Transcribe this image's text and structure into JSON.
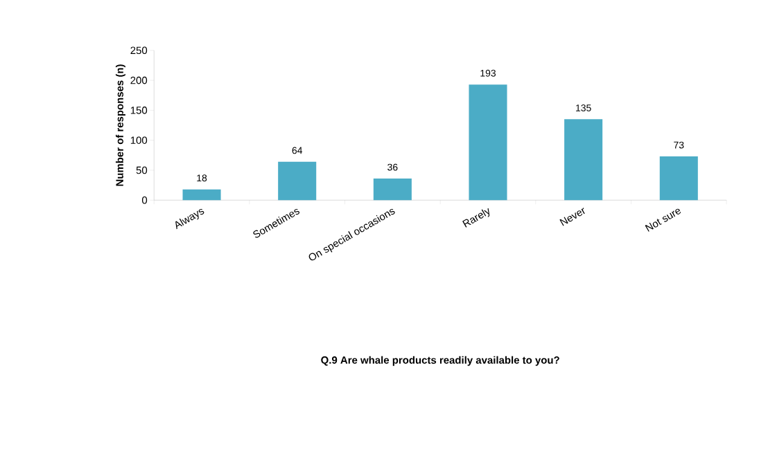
{
  "chart_data": {
    "type": "bar",
    "annotations": [
      "Q.9 Are whale products readily available to you?"
    ],
    "ylabel": "Number of responses (n)",
    "categories": [
      "Always",
      "Sometimes",
      "On special occasions",
      "Rarely",
      "Never",
      "Not sure"
    ],
    "values": [
      18,
      64,
      36,
      193,
      135,
      73
    ],
    "color": "#4bacc6",
    "ylim": [
      0,
      250
    ],
    "yticks": [
      0,
      50,
      100,
      150,
      200,
      250
    ],
    "data_labels": true,
    "grid": false
  }
}
